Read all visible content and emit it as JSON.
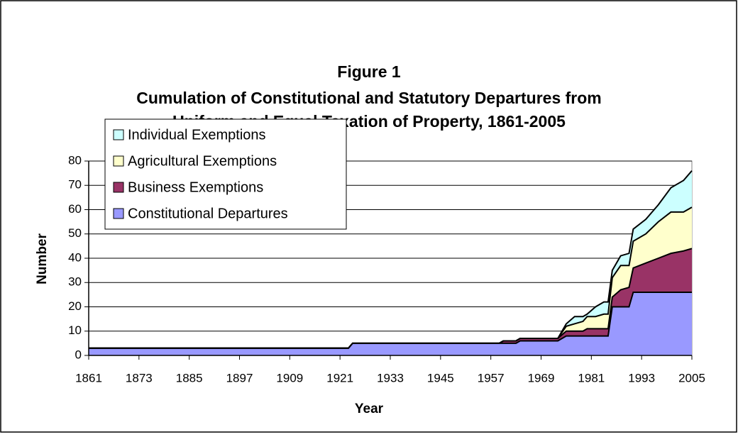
{
  "chart_data": {
    "type": "stacked_area",
    "title": [
      "Figure 1",
      "Cumulation of Constitutional and Statutory Departures from",
      "Uniform and Equal Taxation of Property, 1861-2005"
    ],
    "xlabel": "Year",
    "ylabel": "Number",
    "x": [
      1861,
      1923,
      1924,
      1959,
      1960,
      1963,
      1964,
      1973,
      1975,
      1977,
      1979,
      1980,
      1982,
      1984,
      1985,
      1986,
      1988,
      1990,
      1991,
      1994,
      1997,
      2000,
      2003,
      2005
    ],
    "series": [
      {
        "name": "Constitutional Departures",
        "color": "#9999ff",
        "values": [
          3,
          3,
          5,
          5,
          5,
          5,
          6,
          6,
          8,
          8,
          8,
          8,
          8,
          8,
          8,
          20,
          20,
          20,
          26,
          26,
          26,
          26,
          26,
          26
        ]
      },
      {
        "name": "Business Exemptions",
        "color": "#993366",
        "values": [
          0,
          0,
          0,
          0,
          1,
          1,
          1,
          1,
          2,
          2,
          2,
          3,
          3,
          3,
          3,
          4,
          7,
          8,
          10,
          12,
          14,
          16,
          17,
          18
        ]
      },
      {
        "name": "Agricultural Exemptions",
        "color": "#ffffcc",
        "values": [
          0,
          0,
          0,
          0,
          0,
          0,
          0,
          0,
          2,
          3,
          4,
          5,
          5,
          6,
          6,
          8,
          10,
          9,
          11,
          12,
          15,
          17,
          16,
          17
        ]
      },
      {
        "name": "Individual Exemptions",
        "color": "#ccffff",
        "values": [
          0,
          0,
          0,
          0,
          0,
          0,
          0,
          0,
          1,
          3,
          2,
          1,
          4,
          5,
          5,
          3,
          4,
          5,
          5,
          6,
          7,
          10,
          13,
          15
        ]
      }
    ],
    "xlim": [
      1861,
      2005
    ],
    "xticks": [
      1861,
      1873,
      1885,
      1897,
      1909,
      1921,
      1933,
      1945,
      1957,
      1969,
      1981,
      1993,
      2005
    ],
    "ylim": [
      0,
      80
    ],
    "yticks": [
      0,
      10,
      20,
      30,
      40,
      50,
      60,
      70,
      80
    ],
    "grid": true,
    "legend": "upper left"
  }
}
